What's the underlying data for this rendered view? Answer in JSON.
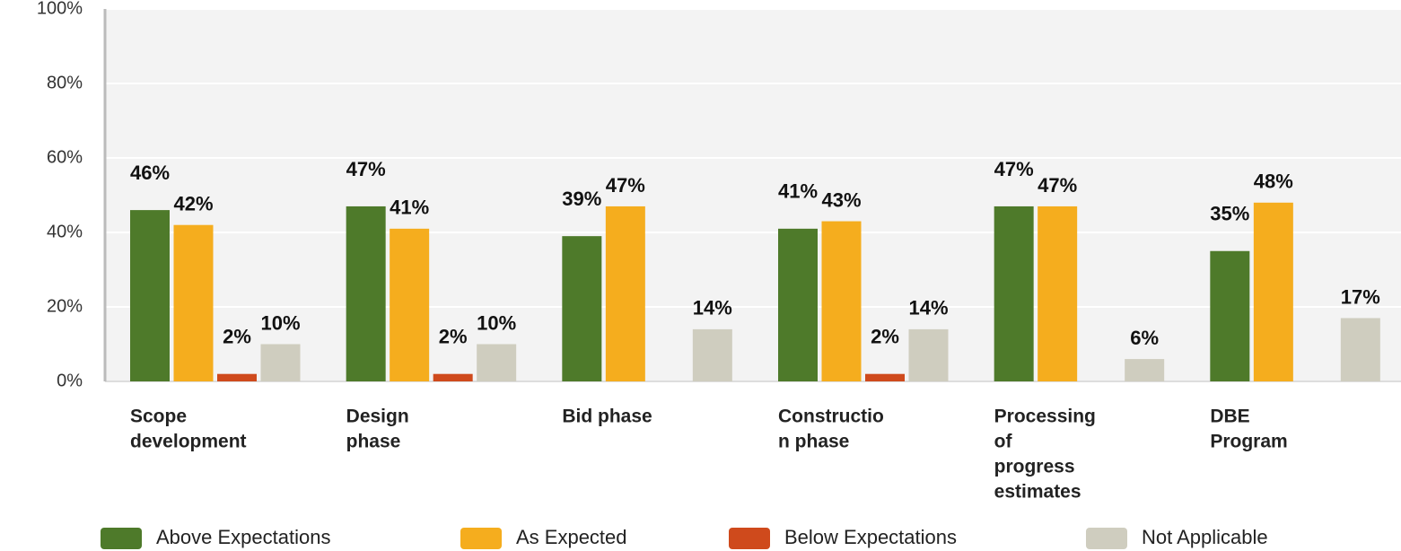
{
  "chart_data": {
    "type": "bar",
    "categories": [
      [
        "Scope",
        "development"
      ],
      [
        "Design",
        "phase"
      ],
      [
        "Bid phase"
      ],
      [
        "Constructio",
        "n phase"
      ],
      [
        "Processing",
        "of",
        "progress",
        "estimates"
      ],
      [
        "DBE",
        "Program"
      ]
    ],
    "series": [
      {
        "name": "Above Expectations",
        "color": "#4e7a2a",
        "values": [
          46,
          47,
          39,
          41,
          47,
          35
        ],
        "value_labels": [
          "46%",
          "47%",
          "39%",
          "41%",
          "47%",
          "35%"
        ]
      },
      {
        "name": "As Expected",
        "color": "#f5ad1e",
        "values": [
          42,
          41,
          47,
          43,
          47,
          48
        ],
        "value_labels": [
          "42%",
          "41%",
          "47%",
          "43%",
          "47%",
          "48%"
        ]
      },
      {
        "name": "Below Expectations",
        "color": "#cf4a1c",
        "values": [
          2,
          2,
          null,
          2,
          null,
          null
        ],
        "value_labels": [
          "2%",
          "2%",
          null,
          "2%",
          null,
          null
        ]
      },
      {
        "name": "Not Applicable",
        "color": "#cfcdbf",
        "values": [
          10,
          10,
          14,
          14,
          6,
          17
        ],
        "value_labels": [
          "10%",
          "10%",
          "14%",
          "14%",
          "6%",
          "17%"
        ]
      }
    ],
    "ylim": [
      0,
      100
    ],
    "yticks": [
      {
        "value": 0,
        "label": "0%"
      },
      {
        "value": 20,
        "label": "20%"
      },
      {
        "value": 40,
        "label": "40%"
      },
      {
        "value": 60,
        "label": "60%"
      },
      {
        "value": 80,
        "label": "80%"
      },
      {
        "value": 100,
        "label": "100%"
      }
    ],
    "grid": true
  }
}
